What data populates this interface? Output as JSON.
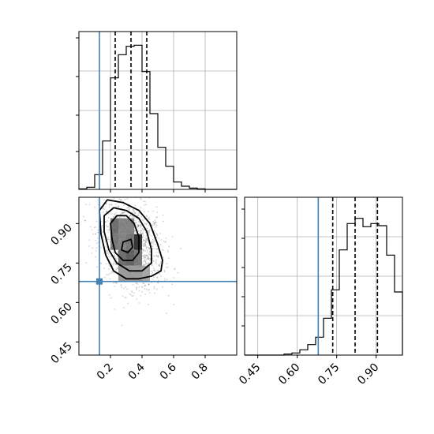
{
  "chart_data": [
    {
      "type": "histogram",
      "panel": "top-left",
      "xlim": [
        0.0,
        1.0
      ],
      "ylim": [
        0,
        1500
      ],
      "bins": {
        "left": [
          0.0,
          0.05,
          0.1,
          0.15,
          0.2,
          0.25,
          0.3,
          0.35,
          0.4,
          0.45,
          0.5,
          0.55,
          0.6,
          0.65,
          0.7,
          0.75,
          0.8,
          0.85,
          0.9,
          0.95
        ],
        "counts": [
          5,
          20,
          140,
          460,
          1060,
          1280,
          1360,
          1370,
          1120,
          720,
          400,
          220,
          70,
          30,
          12,
          5,
          0,
          0,
          0,
          0
        ]
      },
      "truth": 0.13,
      "quantiles": [
        0.23,
        0.33,
        0.43
      ],
      "xticks": [
        0.2,
        0.4,
        0.6,
        0.8
      ],
      "grid": true,
      "colors": {
        "line": "#000000",
        "truth": "#4682b4",
        "grid": "#b0b0b0"
      }
    },
    {
      "type": "2d-density",
      "panel": "bottom-left",
      "xlim": [
        0.0,
        1.0
      ],
      "ylim": [
        0.4,
        1.0
      ],
      "truth": [
        0.13,
        0.68
      ],
      "xticks": [
        "0.2",
        "0.4",
        "0.6",
        "0.8"
      ],
      "yticks": [
        "0.45",
        "0.60",
        "0.75",
        "0.90"
      ],
      "ytick_values": [
        0.45,
        0.6,
        0.75,
        0.9
      ],
      "xtick_values": [
        0.2,
        0.4,
        0.6,
        0.8
      ],
      "contours": [
        {
          "level": "outer",
          "points": [
            [
              0.13,
              0.95
            ],
            [
              0.18,
              0.99
            ],
            [
              0.28,
              0.98
            ],
            [
              0.38,
              0.95
            ],
            [
              0.45,
              0.9
            ],
            [
              0.5,
              0.82
            ],
            [
              0.53,
              0.76
            ],
            [
              0.52,
              0.72
            ],
            [
              0.46,
              0.7
            ],
            [
              0.38,
              0.69
            ],
            [
              0.3,
              0.69
            ],
            [
              0.22,
              0.72
            ],
            [
              0.17,
              0.78
            ],
            [
              0.14,
              0.86
            ]
          ]
        },
        {
          "level": "second",
          "points": [
            [
              0.16,
              0.93
            ],
            [
              0.22,
              0.96
            ],
            [
              0.3,
              0.95
            ],
            [
              0.38,
              0.92
            ],
            [
              0.43,
              0.87
            ],
            [
              0.46,
              0.8
            ],
            [
              0.46,
              0.75
            ],
            [
              0.4,
              0.72
            ],
            [
              0.32,
              0.72
            ],
            [
              0.24,
              0.75
            ],
            [
              0.19,
              0.8
            ],
            [
              0.16,
              0.87
            ]
          ]
        },
        {
          "level": "third",
          "points": [
            [
              0.2,
              0.9
            ],
            [
              0.24,
              0.93
            ],
            [
              0.3,
              0.93
            ],
            [
              0.35,
              0.9
            ],
            [
              0.38,
              0.85
            ],
            [
              0.38,
              0.79
            ],
            [
              0.34,
              0.76
            ],
            [
              0.28,
              0.76
            ],
            [
              0.23,
              0.79
            ],
            [
              0.21,
              0.84
            ]
          ]
        },
        {
          "level": "inner",
          "points": [
            [
              0.27,
              0.8
            ],
            [
              0.28,
              0.83
            ],
            [
              0.33,
              0.84
            ],
            [
              0.34,
              0.81
            ],
            [
              0.31,
              0.79
            ]
          ]
        }
      ],
      "density_cells": [
        {
          "x": 0.2,
          "y": 0.92,
          "shade": 0.65
        },
        {
          "x": 0.25,
          "y": 0.92,
          "shade": 0.55
        },
        {
          "x": 0.3,
          "y": 0.92,
          "shade": 0.55
        },
        {
          "x": 0.2,
          "y": 0.86,
          "shade": 0.6
        },
        {
          "x": 0.25,
          "y": 0.86,
          "shade": 0.55
        },
        {
          "x": 0.3,
          "y": 0.86,
          "shade": 0.6
        },
        {
          "x": 0.35,
          "y": 0.86,
          "shade": 0.9
        },
        {
          "x": 0.25,
          "y": 0.8,
          "shade": 0.65
        },
        {
          "x": 0.3,
          "y": 0.8,
          "shade": 0.7
        },
        {
          "x": 0.35,
          "y": 0.8,
          "shade": 0.6
        },
        {
          "x": 0.25,
          "y": 0.74,
          "shade": 0.45
        },
        {
          "x": 0.3,
          "y": 0.74,
          "shade": 0.45
        },
        {
          "x": 0.35,
          "y": 0.74,
          "shade": 0.45
        },
        {
          "x": 0.4,
          "y": 0.74,
          "shade": 0.4
        }
      ],
      "grid": true,
      "colors": {
        "line": "#000000",
        "truth": "#4682b4",
        "points": "#808080"
      }
    },
    {
      "type": "histogram",
      "panel": "bottom-right",
      "xlim": [
        0.4,
        1.0
      ],
      "ylim": [
        0,
        1500
      ],
      "bins": {
        "left": [
          0.4,
          0.43,
          0.46,
          0.49,
          0.52,
          0.55,
          0.58,
          0.61,
          0.64,
          0.67,
          0.7,
          0.73,
          0.76,
          0.79,
          0.82,
          0.85,
          0.88,
          0.91,
          0.94,
          0.97
        ],
        "counts": [
          0,
          0,
          0,
          0,
          0,
          10,
          20,
          50,
          100,
          170,
          350,
          620,
          1000,
          1250,
          1300,
          1220,
          1250,
          1230,
          950,
          600
        ]
      },
      "truth": 0.68,
      "quantiles": [
        0.735,
        0.82,
        0.905
      ],
      "xticks": [
        "0.45",
        "0.60",
        "0.75",
        "0.90"
      ],
      "xtick_values": [
        0.45,
        0.6,
        0.75,
        0.9
      ],
      "grid": true,
      "colors": {
        "line": "#000000",
        "truth": "#4682b4",
        "grid": "#b0b0b0"
      }
    }
  ]
}
